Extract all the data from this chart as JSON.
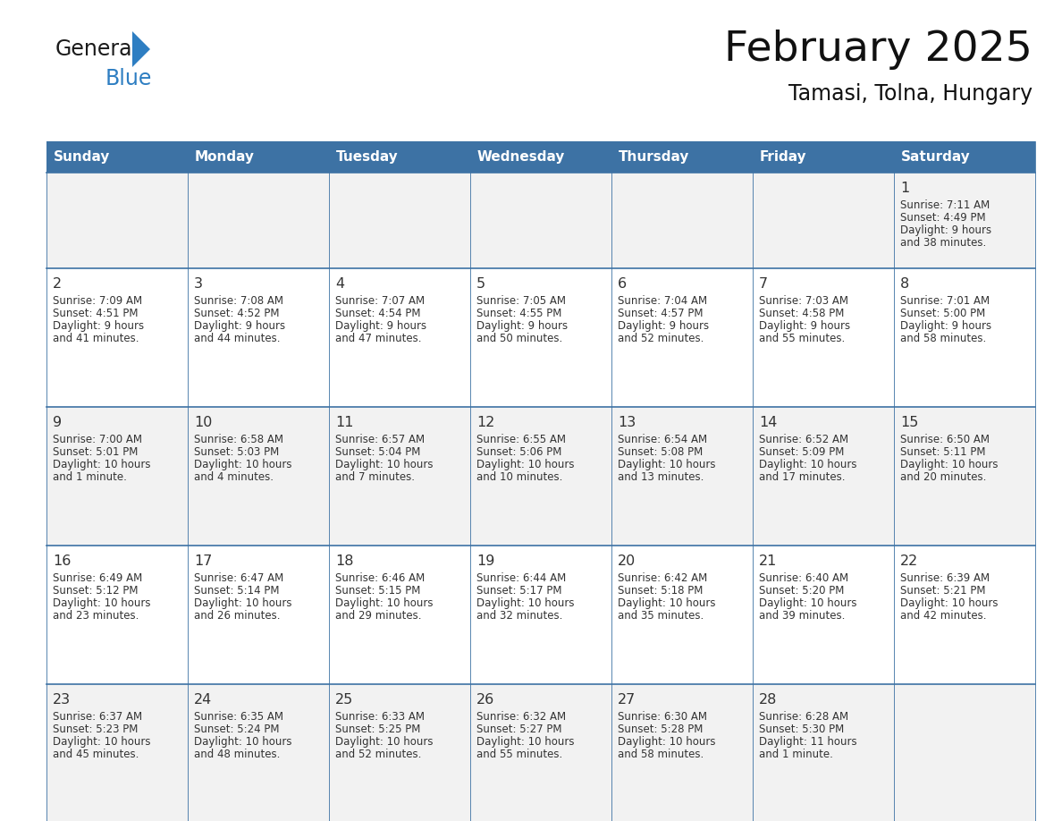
{
  "title": "February 2025",
  "subtitle": "Tamasi, Tolna, Hungary",
  "days_of_week": [
    "Sunday",
    "Monday",
    "Tuesday",
    "Wednesday",
    "Thursday",
    "Friday",
    "Saturday"
  ],
  "header_bg_color": "#3D72A4",
  "header_text_color": "#FFFFFF",
  "cell_bg_even": "#F2F2F2",
  "cell_bg_odd": "#FFFFFF",
  "grid_line_color": "#3D72A4",
  "text_color": "#333333",
  "logo_general_color": "#1A1A1A",
  "logo_blue_color": "#2E7EC2",
  "calendar_data": [
    {
      "day": 1,
      "col": 6,
      "row": 0,
      "sunrise": "7:11 AM",
      "sunset": "4:49 PM",
      "daylight": "9 hours",
      "daylight2": "and 38 minutes."
    },
    {
      "day": 2,
      "col": 0,
      "row": 1,
      "sunrise": "7:09 AM",
      "sunset": "4:51 PM",
      "daylight": "9 hours",
      "daylight2": "and 41 minutes."
    },
    {
      "day": 3,
      "col": 1,
      "row": 1,
      "sunrise": "7:08 AM",
      "sunset": "4:52 PM",
      "daylight": "9 hours",
      "daylight2": "and 44 minutes."
    },
    {
      "day": 4,
      "col": 2,
      "row": 1,
      "sunrise": "7:07 AM",
      "sunset": "4:54 PM",
      "daylight": "9 hours",
      "daylight2": "and 47 minutes."
    },
    {
      "day": 5,
      "col": 3,
      "row": 1,
      "sunrise": "7:05 AM",
      "sunset": "4:55 PM",
      "daylight": "9 hours",
      "daylight2": "and 50 minutes."
    },
    {
      "day": 6,
      "col": 4,
      "row": 1,
      "sunrise": "7:04 AM",
      "sunset": "4:57 PM",
      "daylight": "9 hours",
      "daylight2": "and 52 minutes."
    },
    {
      "day": 7,
      "col": 5,
      "row": 1,
      "sunrise": "7:03 AM",
      "sunset": "4:58 PM",
      "daylight": "9 hours",
      "daylight2": "and 55 minutes."
    },
    {
      "day": 8,
      "col": 6,
      "row": 1,
      "sunrise": "7:01 AM",
      "sunset": "5:00 PM",
      "daylight": "9 hours",
      "daylight2": "and 58 minutes."
    },
    {
      "day": 9,
      "col": 0,
      "row": 2,
      "sunrise": "7:00 AM",
      "sunset": "5:01 PM",
      "daylight": "10 hours",
      "daylight2": "and 1 minute."
    },
    {
      "day": 10,
      "col": 1,
      "row": 2,
      "sunrise": "6:58 AM",
      "sunset": "5:03 PM",
      "daylight": "10 hours",
      "daylight2": "and 4 minutes."
    },
    {
      "day": 11,
      "col": 2,
      "row": 2,
      "sunrise": "6:57 AM",
      "sunset": "5:04 PM",
      "daylight": "10 hours",
      "daylight2": "and 7 minutes."
    },
    {
      "day": 12,
      "col": 3,
      "row": 2,
      "sunrise": "6:55 AM",
      "sunset": "5:06 PM",
      "daylight": "10 hours",
      "daylight2": "and 10 minutes."
    },
    {
      "day": 13,
      "col": 4,
      "row": 2,
      "sunrise": "6:54 AM",
      "sunset": "5:08 PM",
      "daylight": "10 hours",
      "daylight2": "and 13 minutes."
    },
    {
      "day": 14,
      "col": 5,
      "row": 2,
      "sunrise": "6:52 AM",
      "sunset": "5:09 PM",
      "daylight": "10 hours",
      "daylight2": "and 17 minutes."
    },
    {
      "day": 15,
      "col": 6,
      "row": 2,
      "sunrise": "6:50 AM",
      "sunset": "5:11 PM",
      "daylight": "10 hours",
      "daylight2": "and 20 minutes."
    },
    {
      "day": 16,
      "col": 0,
      "row": 3,
      "sunrise": "6:49 AM",
      "sunset": "5:12 PM",
      "daylight": "10 hours",
      "daylight2": "and 23 minutes."
    },
    {
      "day": 17,
      "col": 1,
      "row": 3,
      "sunrise": "6:47 AM",
      "sunset": "5:14 PM",
      "daylight": "10 hours",
      "daylight2": "and 26 minutes."
    },
    {
      "day": 18,
      "col": 2,
      "row": 3,
      "sunrise": "6:46 AM",
      "sunset": "5:15 PM",
      "daylight": "10 hours",
      "daylight2": "and 29 minutes."
    },
    {
      "day": 19,
      "col": 3,
      "row": 3,
      "sunrise": "6:44 AM",
      "sunset": "5:17 PM",
      "daylight": "10 hours",
      "daylight2": "and 32 minutes."
    },
    {
      "day": 20,
      "col": 4,
      "row": 3,
      "sunrise": "6:42 AM",
      "sunset": "5:18 PM",
      "daylight": "10 hours",
      "daylight2": "and 35 minutes."
    },
    {
      "day": 21,
      "col": 5,
      "row": 3,
      "sunrise": "6:40 AM",
      "sunset": "5:20 PM",
      "daylight": "10 hours",
      "daylight2": "and 39 minutes."
    },
    {
      "day": 22,
      "col": 6,
      "row": 3,
      "sunrise": "6:39 AM",
      "sunset": "5:21 PM",
      "daylight": "10 hours",
      "daylight2": "and 42 minutes."
    },
    {
      "day": 23,
      "col": 0,
      "row": 4,
      "sunrise": "6:37 AM",
      "sunset": "5:23 PM",
      "daylight": "10 hours",
      "daylight2": "and 45 minutes."
    },
    {
      "day": 24,
      "col": 1,
      "row": 4,
      "sunrise": "6:35 AM",
      "sunset": "5:24 PM",
      "daylight": "10 hours",
      "daylight2": "and 48 minutes."
    },
    {
      "day": 25,
      "col": 2,
      "row": 4,
      "sunrise": "6:33 AM",
      "sunset": "5:25 PM",
      "daylight": "10 hours",
      "daylight2": "and 52 minutes."
    },
    {
      "day": 26,
      "col": 3,
      "row": 4,
      "sunrise": "6:32 AM",
      "sunset": "5:27 PM",
      "daylight": "10 hours",
      "daylight2": "and 55 minutes."
    },
    {
      "day": 27,
      "col": 4,
      "row": 4,
      "sunrise": "6:30 AM",
      "sunset": "5:28 PM",
      "daylight": "10 hours",
      "daylight2": "and 58 minutes."
    },
    {
      "day": 28,
      "col": 5,
      "row": 4,
      "sunrise": "6:28 AM",
      "sunset": "5:30 PM",
      "daylight": "11 hours",
      "daylight2": "and 1 minute."
    }
  ],
  "num_rows": 5,
  "num_cols": 7
}
